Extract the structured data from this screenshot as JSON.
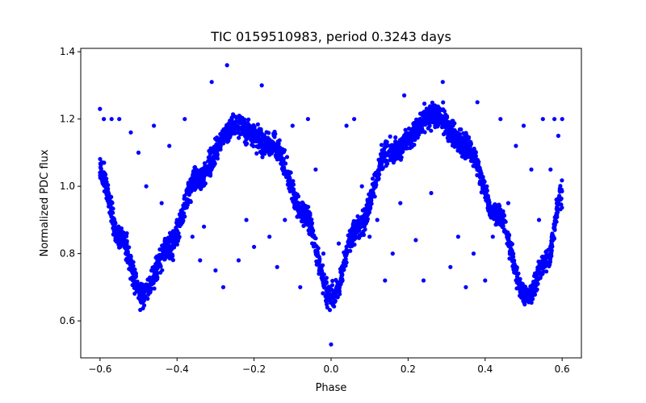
{
  "chart_data": {
    "type": "scatter",
    "title": "TIC 0159510983, period 0.3243 days",
    "xlabel": "Phase",
    "ylabel": "Normalized PDC flux",
    "xlim": [
      -0.65,
      0.65
    ],
    "ylim": [
      0.49,
      1.41
    ],
    "xticks": [
      -0.6,
      -0.4,
      -0.2,
      0.0,
      0.2,
      0.4,
      0.6
    ],
    "xtick_labels": [
      "−0.6",
      "−0.4",
      "−0.2",
      "0.0",
      "0.2",
      "0.4",
      "0.6"
    ],
    "yticks": [
      0.6,
      0.8,
      1.0,
      1.2,
      1.4
    ],
    "ytick_labels": [
      "0.6",
      "0.8",
      "1.0",
      "1.2",
      "1.4"
    ],
    "grid": false,
    "marker_color": "#0000ff",
    "series": [
      {
        "curve_description_points": [
          {
            "x": -0.6,
            "y": 1.05
          },
          {
            "x": -0.55,
            "y": 0.85
          },
          {
            "x": -0.49,
            "y": 0.68
          },
          {
            "x": -0.42,
            "y": 0.82
          },
          {
            "x": -0.35,
            "y": 1.02
          },
          {
            "x": -0.25,
            "y": 1.18
          },
          {
            "x": -0.15,
            "y": 1.12
          },
          {
            "x": -0.07,
            "y": 0.92
          },
          {
            "x": 0.0,
            "y": 0.67
          },
          {
            "x": 0.07,
            "y": 0.88
          },
          {
            "x": 0.15,
            "y": 1.1
          },
          {
            "x": 0.27,
            "y": 1.21
          },
          {
            "x": 0.35,
            "y": 1.12
          },
          {
            "x": 0.43,
            "y": 0.92
          },
          {
            "x": 0.51,
            "y": 0.67
          },
          {
            "x": 0.56,
            "y": 0.78
          },
          {
            "x": 0.6,
            "y": 0.98
          }
        ],
        "outliers": [
          {
            "x": -0.6,
            "y": 1.23
          },
          {
            "x": -0.59,
            "y": 1.2
          },
          {
            "x": -0.57,
            "y": 1.2
          },
          {
            "x": -0.55,
            "y": 1.2
          },
          {
            "x": -0.52,
            "y": 1.16
          },
          {
            "x": -0.5,
            "y": 1.1
          },
          {
            "x": -0.48,
            "y": 1.0
          },
          {
            "x": -0.46,
            "y": 1.18
          },
          {
            "x": -0.44,
            "y": 0.95
          },
          {
            "x": -0.42,
            "y": 1.12
          },
          {
            "x": -0.4,
            "y": 0.9
          },
          {
            "x": -0.38,
            "y": 1.2
          },
          {
            "x": -0.36,
            "y": 0.85
          },
          {
            "x": -0.34,
            "y": 0.78
          },
          {
            "x": -0.33,
            "y": 0.88
          },
          {
            "x": -0.31,
            "y": 1.31
          },
          {
            "x": -0.27,
            "y": 1.36
          },
          {
            "x": -0.28,
            "y": 0.7
          },
          {
            "x": -0.3,
            "y": 0.75
          },
          {
            "x": -0.24,
            "y": 0.78
          },
          {
            "x": -0.22,
            "y": 0.9
          },
          {
            "x": -0.2,
            "y": 0.82
          },
          {
            "x": -0.18,
            "y": 1.3
          },
          {
            "x": -0.16,
            "y": 0.85
          },
          {
            "x": -0.14,
            "y": 0.76
          },
          {
            "x": -0.12,
            "y": 0.9
          },
          {
            "x": -0.1,
            "y": 1.18
          },
          {
            "x": -0.08,
            "y": 0.7
          },
          {
            "x": -0.06,
            "y": 1.2
          },
          {
            "x": -0.04,
            "y": 1.05
          },
          {
            "x": -0.02,
            "y": 0.8
          },
          {
            "x": 0.0,
            "y": 0.53
          },
          {
            "x": 0.02,
            "y": 0.83
          },
          {
            "x": 0.04,
            "y": 1.18
          },
          {
            "x": 0.06,
            "y": 1.2
          },
          {
            "x": 0.08,
            "y": 1.0
          },
          {
            "x": 0.1,
            "y": 0.85
          },
          {
            "x": 0.12,
            "y": 0.9
          },
          {
            "x": 0.14,
            "y": 0.72
          },
          {
            "x": 0.16,
            "y": 0.8
          },
          {
            "x": 0.18,
            "y": 0.95
          },
          {
            "x": 0.19,
            "y": 1.27
          },
          {
            "x": 0.22,
            "y": 0.84
          },
          {
            "x": 0.24,
            "y": 0.72
          },
          {
            "x": 0.26,
            "y": 0.98
          },
          {
            "x": 0.29,
            "y": 1.31
          },
          {
            "x": 0.31,
            "y": 0.76
          },
          {
            "x": 0.33,
            "y": 0.85
          },
          {
            "x": 0.35,
            "y": 0.7
          },
          {
            "x": 0.37,
            "y": 0.8
          },
          {
            "x": 0.38,
            "y": 1.25
          },
          {
            "x": 0.4,
            "y": 0.72
          },
          {
            "x": 0.42,
            "y": 0.85
          },
          {
            "x": 0.44,
            "y": 1.2
          },
          {
            "x": 0.46,
            "y": 0.95
          },
          {
            "x": 0.48,
            "y": 1.12
          },
          {
            "x": 0.5,
            "y": 1.18
          },
          {
            "x": 0.52,
            "y": 1.05
          },
          {
            "x": 0.54,
            "y": 0.9
          },
          {
            "x": 0.55,
            "y": 1.2
          },
          {
            "x": 0.57,
            "y": 1.05
          },
          {
            "x": 0.58,
            "y": 1.2
          },
          {
            "x": 0.59,
            "y": 1.15
          },
          {
            "x": 0.6,
            "y": 1.2
          }
        ]
      }
    ]
  }
}
